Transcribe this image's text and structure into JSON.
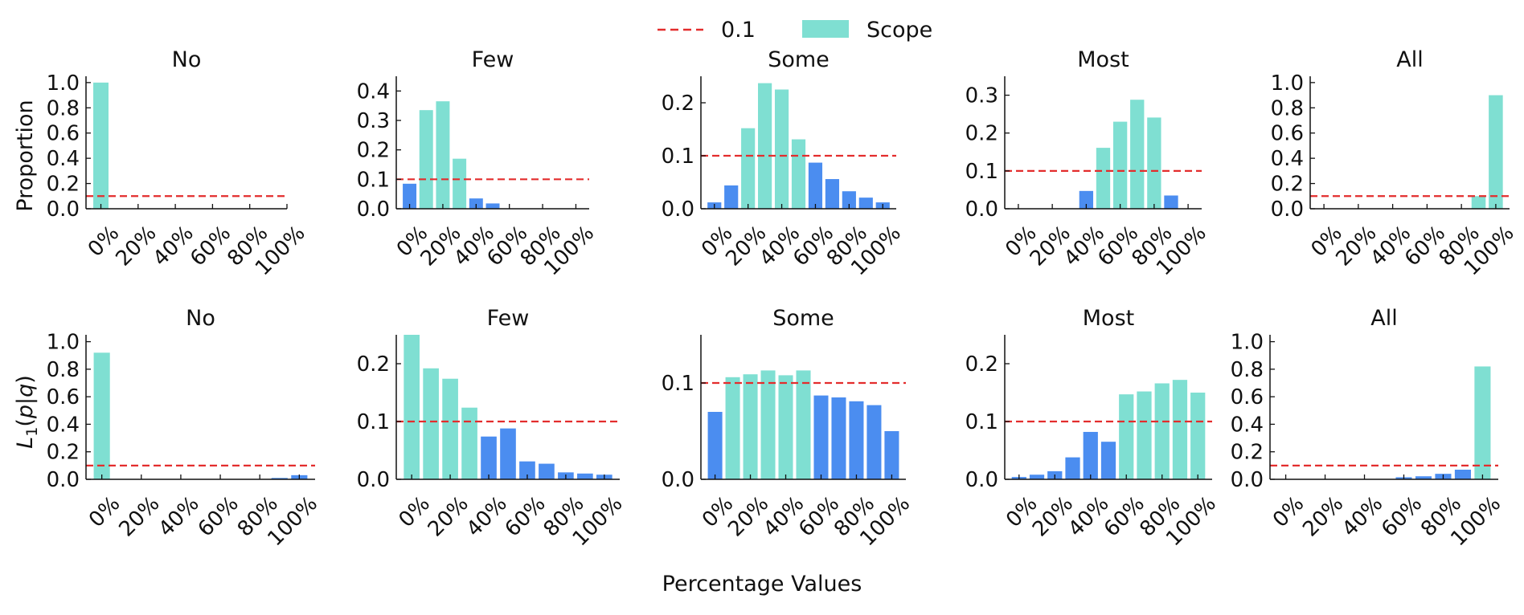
{
  "figure": {
    "xlabel": "Percentage Values",
    "legend": {
      "placement": "top-center",
      "items": [
        {
          "label": "0.1",
          "style": "dashed-line",
          "color": "#e32d2d"
        },
        {
          "label": "Scope",
          "style": "patch",
          "color": "#7fdfd2"
        }
      ]
    },
    "row_ylabels": [
      "Proportion",
      "L1(p|q)"
    ]
  },
  "colors": {
    "scope": "#7fdfd2",
    "out_of_scope": "#4b8df0",
    "threshold": "#e32d2d",
    "axis": "#111111"
  },
  "chart_data": [
    {
      "type": "bar",
      "row": 0,
      "title": "No",
      "ylabel": "Proportion",
      "ylim": [
        0,
        1.05
      ],
      "yticks": [
        0.0,
        0.2,
        0.4,
        0.6,
        0.8,
        1.0
      ],
      "ytick_labels": [
        "0.0",
        "0.2",
        "0.4",
        "0.6",
        "0.8",
        "1.0"
      ],
      "x": [
        0,
        10,
        20,
        30,
        40,
        50,
        60,
        70,
        80,
        90,
        100
      ],
      "xlim": [
        -8,
        100
      ],
      "xticks": [
        0,
        20,
        40,
        60,
        80,
        100
      ],
      "xtick_labels": [
        "0%",
        "20%",
        "40%",
        "60%",
        "80%",
        "100%"
      ],
      "threshold": 0.1,
      "scope_x": [
        0
      ],
      "values": [
        1.0,
        0,
        0,
        0,
        0,
        0,
        0,
        0,
        0,
        0,
        0
      ]
    },
    {
      "type": "bar",
      "row": 0,
      "title": "Few",
      "ylim": [
        0,
        0.45
      ],
      "yticks": [
        0.0,
        0.1,
        0.2,
        0.3,
        0.4
      ],
      "ytick_labels": [
        "0.0",
        "0.1",
        "0.2",
        "0.3",
        "0.4"
      ],
      "x": [
        0,
        10,
        20,
        30,
        40,
        50,
        60,
        70,
        80,
        90,
        100
      ],
      "xlim": [
        -8,
        108
      ],
      "xticks": [
        0,
        20,
        40,
        60,
        80,
        100
      ],
      "xtick_labels": [
        "0%",
        "20%",
        "40%",
        "60%",
        "80%",
        "100%"
      ],
      "threshold": 0.1,
      "scope_x": [
        10,
        20,
        30
      ],
      "values": [
        0.085,
        0.335,
        0.365,
        0.17,
        0.035,
        0.018,
        0,
        0,
        0,
        0,
        0
      ]
    },
    {
      "type": "bar",
      "row": 0,
      "title": "Some",
      "ylim": [
        0,
        0.25
      ],
      "yticks": [
        0.0,
        0.1,
        0.2
      ],
      "ytick_labels": [
        "0.0",
        "0.1",
        "0.2"
      ],
      "x": [
        0,
        10,
        20,
        30,
        40,
        50,
        60,
        70,
        80,
        90,
        100
      ],
      "xlim": [
        -8,
        108
      ],
      "xticks": [
        0,
        20,
        40,
        60,
        80,
        100
      ],
      "xtick_labels": [
        "0%",
        "20%",
        "40%",
        "60%",
        "80%",
        "100%"
      ],
      "threshold": 0.1,
      "scope_x": [
        20,
        30,
        40,
        50
      ],
      "values": [
        0.012,
        0.044,
        0.152,
        0.237,
        0.225,
        0.131,
        0.087,
        0.056,
        0.033,
        0.021,
        0.012
      ]
    },
    {
      "type": "bar",
      "row": 0,
      "title": "Most",
      "ylim": [
        0,
        0.35
      ],
      "yticks": [
        0.0,
        0.1,
        0.2,
        0.3
      ],
      "ytick_labels": [
        "0.0",
        "0.1",
        "0.2",
        "0.3"
      ],
      "x": [
        0,
        10,
        20,
        30,
        40,
        50,
        60,
        70,
        80,
        90,
        100
      ],
      "xlim": [
        -8,
        108
      ],
      "xticks": [
        0,
        20,
        40,
        60,
        80,
        100
      ],
      "xtick_labels": [
        "0%",
        "20%",
        "40%",
        "60%",
        "80%",
        "100%"
      ],
      "threshold": 0.1,
      "scope_x": [
        50,
        60,
        70,
        80
      ],
      "values": [
        0,
        0,
        0,
        0,
        0.047,
        0.161,
        0.23,
        0.288,
        0.241,
        0.035,
        0
      ]
    },
    {
      "type": "bar",
      "row": 0,
      "title": "All",
      "ylim": [
        0,
        1.05
      ],
      "yticks": [
        0.0,
        0.2,
        0.4,
        0.6,
        0.8,
        1.0
      ],
      "ytick_labels": [
        "0.0",
        "0.2",
        "0.4",
        "0.6",
        "0.8",
        "1.0"
      ],
      "x": [
        0,
        10,
        20,
        30,
        40,
        50,
        60,
        70,
        80,
        90,
        100
      ],
      "xlim": [
        -8,
        108
      ],
      "xticks": [
        0,
        20,
        40,
        60,
        80,
        100
      ],
      "xtick_labels": [
        "0%",
        "20%",
        "40%",
        "60%",
        "80%",
        "100%"
      ],
      "threshold": 0.1,
      "scope_x": [
        90,
        100
      ],
      "values": [
        0,
        0,
        0,
        0,
        0,
        0,
        0,
        0,
        0,
        0.1,
        0.9
      ]
    },
    {
      "type": "bar",
      "row": 1,
      "title": "No",
      "ylabel": "L1(p|q)",
      "ylim": [
        0,
        1.05
      ],
      "yticks": [
        0.0,
        0.2,
        0.4,
        0.6,
        0.8,
        1.0
      ],
      "ytick_labels": [
        "0.0",
        "0.2",
        "0.4",
        "0.6",
        "0.8",
        "1.0"
      ],
      "x": [
        0,
        10,
        20,
        30,
        40,
        50,
        60,
        70,
        80,
        90,
        100
      ],
      "xlim": [
        -8,
        108
      ],
      "xticks": [
        0,
        20,
        40,
        60,
        80,
        100
      ],
      "xtick_labels": [
        "0%",
        "20%",
        "40%",
        "60%",
        "80%",
        "100%"
      ],
      "threshold": 0.1,
      "scope_x": [
        0
      ],
      "values": [
        0.92,
        0,
        0,
        0,
        0,
        0,
        0,
        0,
        0,
        0.01,
        0.03
      ]
    },
    {
      "type": "bar",
      "row": 1,
      "title": "Few",
      "ylim": [
        0,
        0.25
      ],
      "yticks": [
        0.0,
        0.1,
        0.2
      ],
      "ytick_labels": [
        "0.0",
        "0.1",
        "0.2"
      ],
      "x": [
        0,
        10,
        20,
        30,
        40,
        50,
        60,
        70,
        80,
        90,
        100
      ],
      "xlim": [
        -8,
        108
      ],
      "xticks": [
        0,
        20,
        40,
        60,
        80,
        100
      ],
      "xtick_labels": [
        "0%",
        "20%",
        "40%",
        "60%",
        "80%",
        "100%"
      ],
      "threshold": 0.1,
      "scope_x": [
        0,
        10,
        20,
        30
      ],
      "values": [
        0.25,
        0.192,
        0.174,
        0.124,
        0.074,
        0.088,
        0.031,
        0.027,
        0.012,
        0.01,
        0.008
      ]
    },
    {
      "type": "bar",
      "row": 1,
      "title": "Some",
      "ylim": [
        0,
        0.15
      ],
      "yticks": [
        0.0,
        0.1
      ],
      "ytick_labels": [
        "0.0",
        "0.1"
      ],
      "x": [
        0,
        10,
        20,
        30,
        40,
        50,
        60,
        70,
        80,
        90,
        100
      ],
      "xlim": [
        -8,
        108
      ],
      "xticks": [
        0,
        20,
        40,
        60,
        80,
        100
      ],
      "xtick_labels": [
        "0%",
        "20%",
        "40%",
        "60%",
        "80%",
        "100%"
      ],
      "threshold": 0.1,
      "scope_x": [
        10,
        20,
        30,
        40,
        50
      ],
      "values": [
        0.07,
        0.106,
        0.109,
        0.113,
        0.108,
        0.113,
        0.087,
        0.085,
        0.081,
        0.077,
        0.05
      ]
    },
    {
      "type": "bar",
      "row": 1,
      "title": "Most",
      "ylim": [
        0,
        0.25
      ],
      "yticks": [
        0.0,
        0.1,
        0.2
      ],
      "ytick_labels": [
        "0.0",
        "0.1",
        "0.2"
      ],
      "x": [
        0,
        10,
        20,
        30,
        40,
        50,
        60,
        70,
        80,
        90,
        100
      ],
      "xlim": [
        -8,
        108
      ],
      "xticks": [
        0,
        20,
        40,
        60,
        80,
        100
      ],
      "xtick_labels": [
        "0%",
        "20%",
        "40%",
        "60%",
        "80%",
        "100%"
      ],
      "threshold": 0.1,
      "scope_x": [
        60,
        70,
        80,
        90,
        100
      ],
      "values": [
        0.004,
        0.008,
        0.014,
        0.038,
        0.082,
        0.065,
        0.147,
        0.152,
        0.166,
        0.172,
        0.15
      ]
    },
    {
      "type": "bar",
      "row": 1,
      "title": "All",
      "ylim": [
        0,
        1.05
      ],
      "yticks": [
        0.0,
        0.2,
        0.4,
        0.6,
        0.8,
        1.0
      ],
      "ytick_labels": [
        "0.0",
        "0.2",
        "0.4",
        "0.6",
        "0.8",
        "1.0"
      ],
      "x": [
        0,
        10,
        20,
        30,
        40,
        50,
        60,
        70,
        80,
        90,
        100
      ],
      "xlim": [
        -8,
        108
      ],
      "xticks": [
        0,
        20,
        40,
        60,
        80,
        100
      ],
      "xtick_labels": [
        "0%",
        "20%",
        "40%",
        "60%",
        "80%",
        "100%"
      ],
      "threshold": 0.1,
      "scope_x": [
        100
      ],
      "values": [
        0,
        0,
        0,
        0,
        0,
        0,
        0.015,
        0.022,
        0.04,
        0.07,
        0.82
      ]
    }
  ]
}
